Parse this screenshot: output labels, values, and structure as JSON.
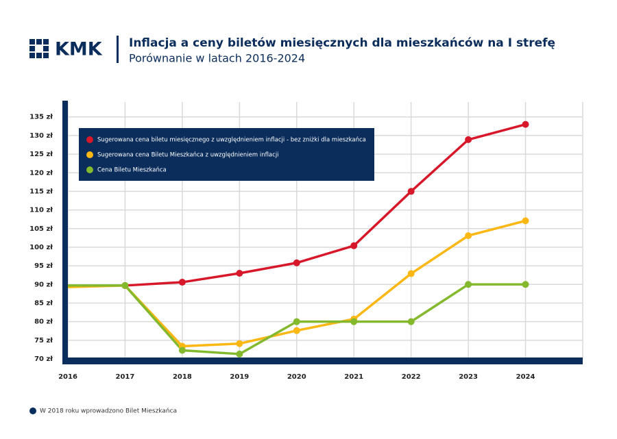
{
  "chart_data": {
    "type": "line",
    "logo": "KMK",
    "title": "Inflacja a ceny biletów miesięcznych dla mieszkańców na I strefę",
    "subtitle": "Porównanie w latach 2016-2024",
    "note": "W 2018 roku wprowadzono Bilet Mieszkańca",
    "x": [
      2016,
      2017,
      2018,
      2019,
      2020,
      2021,
      2022,
      2023,
      2024
    ],
    "xlim": [
      2016,
      2025
    ],
    "xticks": [
      2016,
      2017,
      2018,
      2019,
      2020,
      2021,
      2022,
      2023,
      2024
    ],
    "ylim": [
      70,
      139
    ],
    "yticks": [
      {
        "value": 70,
        "label": "70 zł"
      },
      {
        "value": 75,
        "label": "75 zł"
      },
      {
        "value": 80,
        "label": "80 zł"
      },
      {
        "value": 85,
        "label": "85 zł"
      },
      {
        "value": 90,
        "label": "90 zł"
      },
      {
        "value": 95,
        "label": "95 zł"
      },
      {
        "value": 100,
        "label": "100 zł"
      },
      {
        "value": 105,
        "label": "105 zł"
      },
      {
        "value": 110,
        "label": "110 zł"
      },
      {
        "value": 115,
        "label": "115 zł"
      },
      {
        "value": 120,
        "label": "120 zł"
      },
      {
        "value": 125,
        "label": "125 zł"
      },
      {
        "value": 130,
        "label": "130 zł"
      },
      {
        "value": 135,
        "label": "135 zł"
      }
    ],
    "grid": true,
    "legend": "upper left",
    "series": [
      {
        "name": "Sugerowana cena biletu miesięcznego z uwzględnieniem inflacji - bez zniżki dla mieszkańca",
        "color": "#d7182a",
        "values": [
          null,
          89.7,
          90.6,
          93,
          95.8,
          100.4,
          115,
          128.9,
          133
        ]
      },
      {
        "name": "Sugerowana cena Biletu Mieszkańca z uwzględnieniem inflacji",
        "color": "#fbb713",
        "values": [
          89.3,
          89.7,
          73.4,
          74.1,
          77.6,
          80.7,
          92.9,
          103.1,
          107.1
        ]
      },
      {
        "name": "Cena Biletu Mieszkańca",
        "color": "#84b92e",
        "values": [
          89.7,
          89.7,
          72.3,
          71.3,
          80,
          80,
          80,
          90,
          90
        ]
      }
    ]
  }
}
